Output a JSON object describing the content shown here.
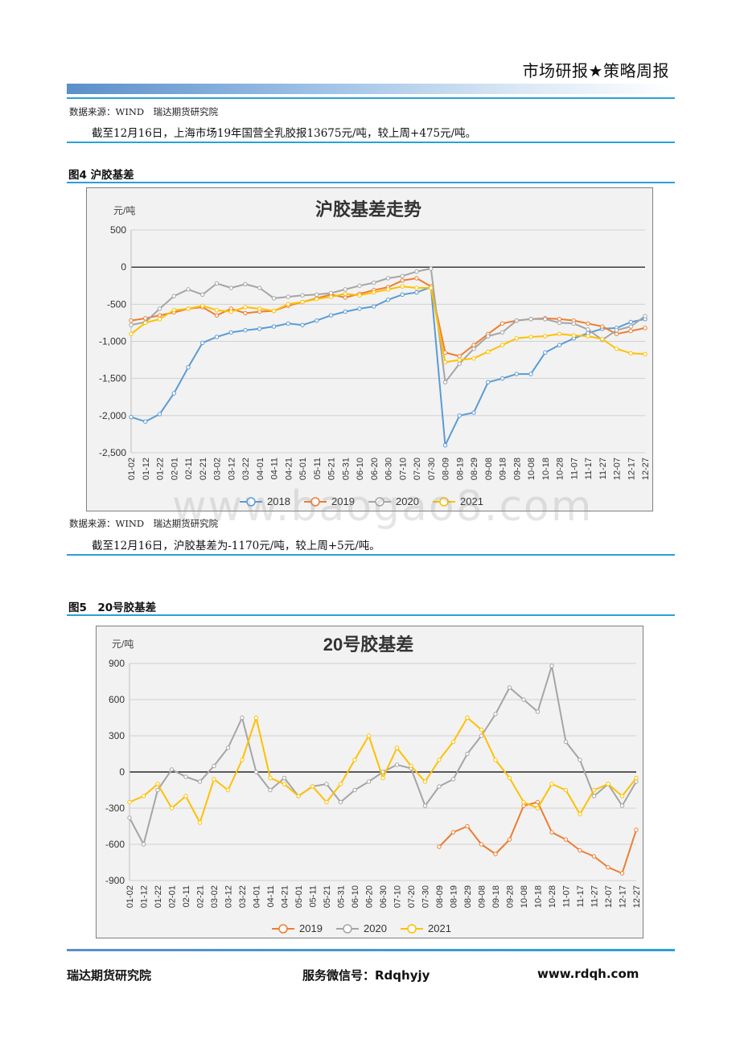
{
  "header": {
    "title": "市场研报★策略周报"
  },
  "section_top": {
    "source": "数据来源：WIND　瑞达期货研究院",
    "text": "截至12月16日，上海市场19年国营全乳胶报13675元/吨，较上周+475元/吨。"
  },
  "figure4": {
    "caption": "图4 沪胶基差"
  },
  "section_mid": {
    "source": "数据来源：WIND　瑞达期货研究院",
    "text": "截至12月16日，沪胶基差为-1170元/吨，较上周+5元/吨。"
  },
  "figure5": {
    "caption": "图5　20号胶基差"
  },
  "watermark": {
    "text": "www.baogao8.com",
    "diag": "瑞达期货研究院"
  },
  "footer": {
    "left": "瑞达期货研究院",
    "center": "服务微信号：Rdqhyjy",
    "right": "www.rdqh.com"
  },
  "colors": {
    "s2018": "#5b9bd5",
    "s2019": "#ed7d31",
    "s2020": "#a5a5a5",
    "s2021": "#ffc000"
  },
  "chart_data": [
    {
      "type": "line",
      "title": "沪胶基差走势",
      "ylabel": "元/吨",
      "ylim": [
        -2500,
        500
      ],
      "yticks": [
        500,
        0,
        -500,
        -1000,
        -1500,
        -2000,
        -2500
      ],
      "ytick_labels": [
        "500",
        "0",
        "-500",
        "-1,000",
        "-1,500",
        "-2,000",
        "-2,500"
      ],
      "categories": [
        "01-02",
        "01-12",
        "01-22",
        "02-01",
        "02-11",
        "02-21",
        "03-02",
        "03-12",
        "03-22",
        "04-01",
        "04-11",
        "04-21",
        "05-01",
        "05-11",
        "05-21",
        "05-31",
        "06-10",
        "06-20",
        "06-30",
        "07-10",
        "07-20",
        "07-30",
        "08-09",
        "08-19",
        "08-29",
        "09-08",
        "09-18",
        "09-28",
        "10-08",
        "10-18",
        "10-28",
        "11-07",
        "11-17",
        "11-27",
        "12-07",
        "12-17",
        "12-27"
      ],
      "grid": true,
      "legend": "bottom",
      "series": [
        {
          "name": "2018",
          "values": [
            -2020,
            -2080,
            -1980,
            -1700,
            -1350,
            -1020,
            -940,
            -880,
            -850,
            -830,
            -800,
            -760,
            -780,
            -720,
            -650,
            -600,
            -560,
            -530,
            -440,
            -370,
            -340,
            -270,
            -2400,
            -2000,
            -1960,
            -1550,
            -1500,
            -1440,
            -1440,
            -1150,
            -1050,
            -960,
            -890,
            -830,
            -820,
            -740,
            -700
          ]
        },
        {
          "name": "2019",
          "values": [
            -720,
            -690,
            -650,
            -610,
            -560,
            -540,
            -650,
            -560,
            -620,
            -600,
            -590,
            -520,
            -470,
            -420,
            -370,
            -410,
            -360,
            -310,
            -270,
            -180,
            -150,
            -260,
            -1150,
            -1200,
            -1050,
            -900,
            -760,
            -720,
            -700,
            -690,
            -700,
            -720,
            -760,
            -800,
            -900,
            -860,
            -820
          ]
        },
        {
          "name": "2020",
          "values": [
            -780,
            -740,
            -560,
            -390,
            -300,
            -370,
            -220,
            -280,
            -230,
            -280,
            -420,
            -400,
            -380,
            -370,
            -350,
            -300,
            -250,
            -210,
            -150,
            -120,
            -60,
            -20,
            -1550,
            -1300,
            -1100,
            -930,
            -880,
            -720,
            -700,
            -700,
            -750,
            -760,
            -840,
            -980,
            -850,
            -800,
            -660
          ]
        },
        {
          "name": "2021",
          "values": [
            -900,
            -750,
            -700,
            -580,
            -560,
            -520,
            -580,
            -600,
            -540,
            -560,
            -590,
            -500,
            -470,
            -430,
            -400,
            -360,
            -380,
            -340,
            -300,
            -260,
            -280,
            -280,
            -1280,
            -1250,
            -1230,
            -1140,
            -1050,
            -960,
            -940,
            -930,
            -900,
            -920,
            -930,
            -970,
            -1100,
            -1160,
            -1170
          ]
        }
      ]
    },
    {
      "type": "line",
      "title": "20号胶基差",
      "ylabel": "元/吨",
      "ylim": [
        -900,
        900
      ],
      "yticks": [
        900,
        600,
        300,
        0,
        -300,
        -600,
        -900
      ],
      "ytick_labels": [
        "900",
        "600",
        "300",
        "0",
        "-300",
        "-600",
        "-900"
      ],
      "categories": [
        "01-02",
        "01-12",
        "01-22",
        "02-01",
        "02-11",
        "02-21",
        "03-02",
        "03-12",
        "03-22",
        "04-01",
        "04-11",
        "04-21",
        "05-01",
        "05-11",
        "05-21",
        "05-31",
        "06-10",
        "06-20",
        "06-30",
        "07-10",
        "07-20",
        "07-30",
        "08-09",
        "08-19",
        "08-29",
        "09-08",
        "09-18",
        "09-28",
        "10-08",
        "10-18",
        "10-28",
        "11-07",
        "11-17",
        "11-27",
        "12-07",
        "12-17",
        "12-27"
      ],
      "grid": true,
      "legend": "bottom",
      "series": [
        {
          "name": "2019",
          "values": [
            null,
            null,
            null,
            null,
            null,
            null,
            null,
            null,
            null,
            null,
            null,
            null,
            null,
            null,
            null,
            null,
            null,
            null,
            null,
            null,
            null,
            null,
            -620,
            -500,
            -450,
            -600,
            -680,
            -560,
            -280,
            -250,
            -500,
            -560,
            -650,
            -700,
            -790,
            -840,
            -480
          ]
        },
        {
          "name": "2020",
          "values": [
            -380,
            -600,
            -150,
            20,
            -40,
            -80,
            50,
            200,
            450,
            0,
            -150,
            -50,
            -200,
            -120,
            -100,
            -250,
            -150,
            -80,
            0,
            60,
            30,
            -280,
            -120,
            -60,
            150,
            300,
            480,
            700,
            600,
            500,
            880,
            250,
            100,
            -200,
            -100,
            -280,
            -80
          ]
        },
        {
          "name": "2021",
          "values": [
            -250,
            -200,
            -100,
            -300,
            -200,
            -420,
            -60,
            -150,
            100,
            450,
            -50,
            -100,
            -200,
            -120,
            -250,
            -100,
            100,
            300,
            -50,
            200,
            50,
            -80,
            100,
            250,
            450,
            350,
            100,
            -50,
            -250,
            -300,
            -100,
            -150,
            -350,
            -150,
            -100,
            -200,
            -50
          ]
        }
      ]
    }
  ]
}
